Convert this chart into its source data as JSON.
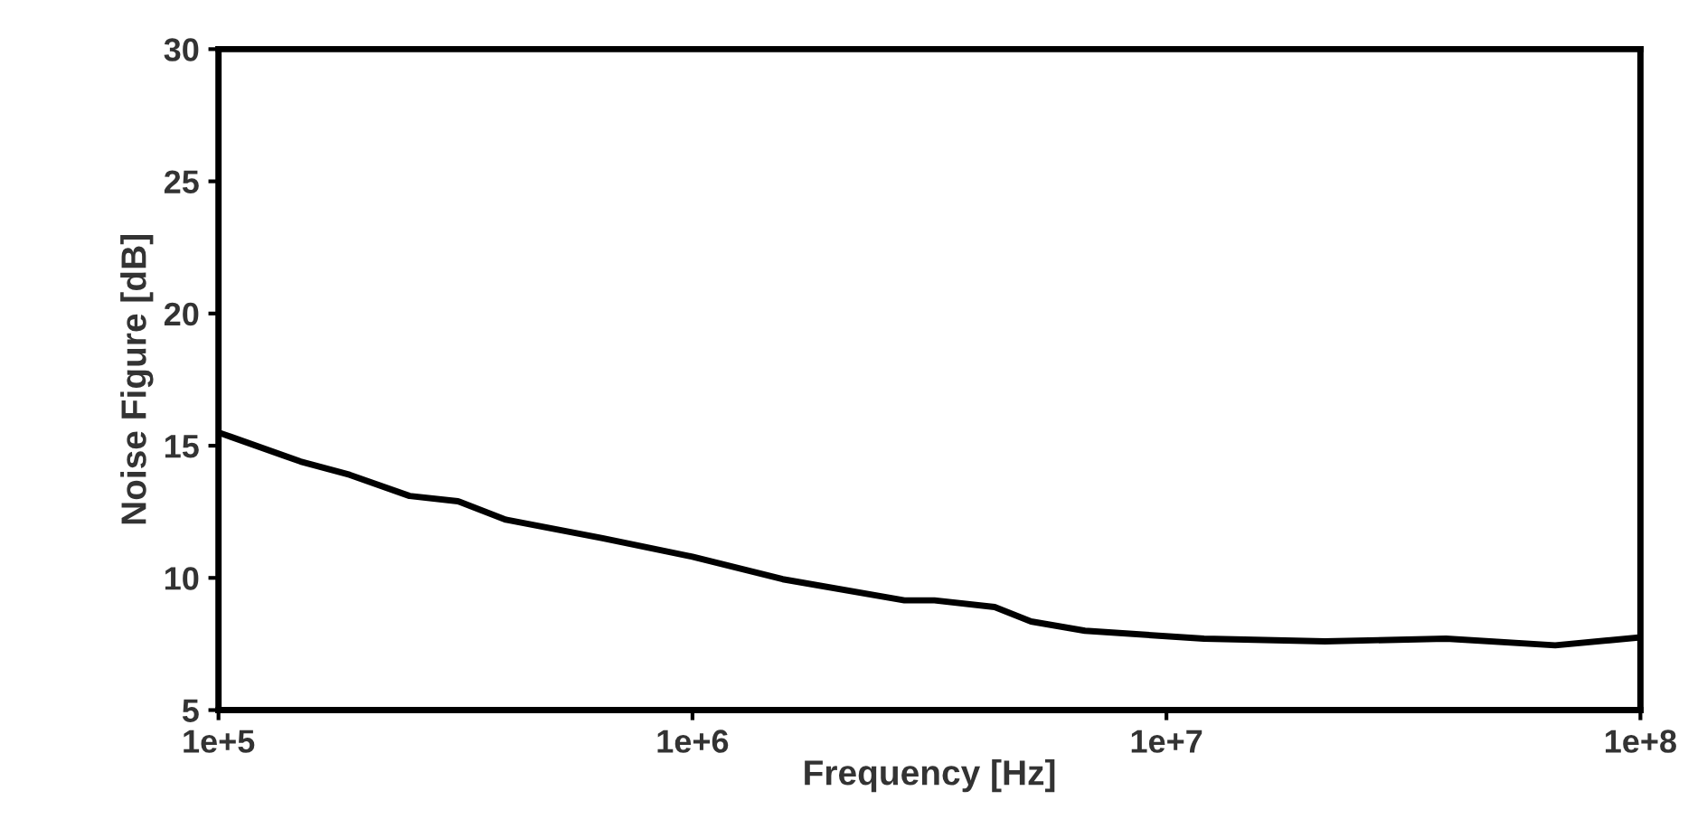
{
  "chart_data": {
    "type": "line",
    "xlabel": "Frequency [Hz]",
    "ylabel": "Noise Figure [dB]",
    "log": "x",
    "xlim": [
      100000,
      100000000
    ],
    "xticks": [
      {
        "value": 100000,
        "label": "1e+5"
      },
      {
        "value": 1000000,
        "label": "1e+6"
      },
      {
        "value": 10000000,
        "label": "1e+7"
      },
      {
        "value": 100000000,
        "label": "1e+8"
      }
    ],
    "ylim": [
      5,
      30
    ],
    "yticks": [
      5,
      10,
      15,
      20,
      25,
      30
    ],
    "grid": false,
    "marker": "none",
    "line_style": "solid",
    "series": [
      {
        "color": "#000000",
        "x": [
          100000,
          149000,
          189000,
          253000,
          320000,
          404000,
          646000,
          1000000,
          1550000,
          2800000,
          3240000,
          4340000,
          5180000,
          6730000,
          12000000,
          21600000,
          38900000,
          66100000,
          100000000
        ],
        "values": [
          15.5,
          14.4,
          13.9,
          13.1,
          12.9,
          12.2,
          11.5,
          10.8,
          9.95,
          9.15,
          9.15,
          8.9,
          8.35,
          8.0,
          7.7,
          7.6,
          7.7,
          7.45,
          7.75
        ]
      }
    ]
  }
}
